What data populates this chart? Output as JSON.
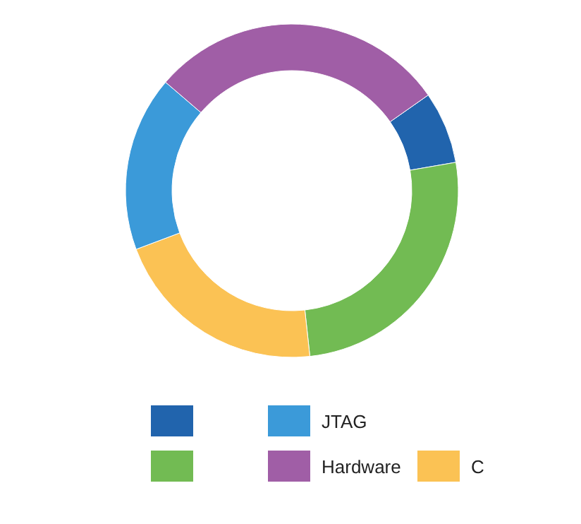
{
  "chart_data": {
    "type": "donut",
    "categories": [
      null,
      null,
      "C",
      "JTAG",
      "Hardware"
    ],
    "values": [
      7,
      26,
      21,
      17,
      29
    ],
    "colors": [
      "#2164ad",
      "#72bb53",
      "#fbc254",
      "#3b9ad9",
      "#a05ea6"
    ],
    "legend": "bottom"
  }
}
